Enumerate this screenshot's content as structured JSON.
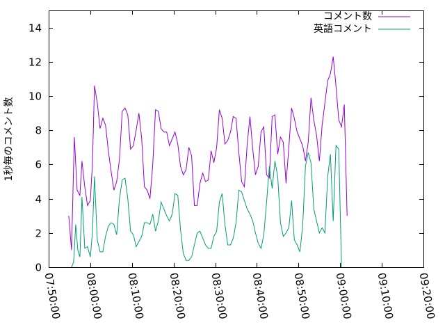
{
  "chart_data": {
    "type": "line",
    "title": "",
    "xlabel": "",
    "ylabel": "1秒毎のコメント数",
    "xlim": [
      "07:50:00",
      "09:20:00"
    ],
    "ylim": [
      0,
      15
    ],
    "grid": false,
    "legend_position": "top-right",
    "x_ticks": [
      "07:50:00",
      "08:00:00",
      "08:10:00",
      "08:20:00",
      "08:30:00",
      "08:40:00",
      "08:50:00",
      "09:00:00",
      "09:10:00",
      "09:20:00"
    ],
    "y_ticks": [
      0,
      2,
      4,
      6,
      8,
      10,
      12,
      14
    ],
    "series": [
      {
        "name": "コメント数",
        "color": "#9400d3",
        "points": [
          [
            "07:54:50",
            3.0
          ],
          [
            "07:55:30",
            1.0
          ],
          [
            "07:56:10",
            7.6
          ],
          [
            "07:56:50",
            4.5
          ],
          [
            "07:57:30",
            4.2
          ],
          [
            "07:58:00",
            6.2
          ],
          [
            "07:58:40",
            4.7
          ],
          [
            "07:59:20",
            3.6
          ],
          [
            "08:00:00",
            3.9
          ],
          [
            "08:00:30",
            6.0
          ],
          [
            "08:01:00",
            10.6
          ],
          [
            "08:01:40",
            9.6
          ],
          [
            "08:02:20",
            8.1
          ],
          [
            "08:03:00",
            8.7
          ],
          [
            "08:03:40",
            8.3
          ],
          [
            "08:04:20",
            6.8
          ],
          [
            "08:05:00",
            5.6
          ],
          [
            "08:05:40",
            4.5
          ],
          [
            "08:06:20",
            5.0
          ],
          [
            "08:07:00",
            6.3
          ],
          [
            "08:07:40",
            9.1
          ],
          [
            "08:08:20",
            9.3
          ],
          [
            "08:09:00",
            8.9
          ],
          [
            "08:09:40",
            6.9
          ],
          [
            "08:10:20",
            7.1
          ],
          [
            "08:11:00",
            8.0
          ],
          [
            "08:11:40",
            9.0
          ],
          [
            "08:12:20",
            7.5
          ],
          [
            "08:13:00",
            4.7
          ],
          [
            "08:13:40",
            4.5
          ],
          [
            "08:14:20",
            4.0
          ],
          [
            "08:15:00",
            6.0
          ],
          [
            "08:15:40",
            9.2
          ],
          [
            "08:16:20",
            9.1
          ],
          [
            "08:17:00",
            8.1
          ],
          [
            "08:17:40",
            7.9
          ],
          [
            "08:18:20",
            7.9
          ],
          [
            "08:19:00",
            7.1
          ],
          [
            "08:19:40",
            7.5
          ],
          [
            "08:20:20",
            7.9
          ],
          [
            "08:21:00",
            7.2
          ],
          [
            "08:21:40",
            5.9
          ],
          [
            "08:22:20",
            5.4
          ],
          [
            "08:23:00",
            5.7
          ],
          [
            "08:23:40",
            7.0
          ],
          [
            "08:24:20",
            6.5
          ],
          [
            "08:25:00",
            3.6
          ],
          [
            "08:25:40",
            3.6
          ],
          [
            "08:26:20",
            4.9
          ],
          [
            "08:27:00",
            5.5
          ],
          [
            "08:27:40",
            5.0
          ],
          [
            "08:28:20",
            5.1
          ],
          [
            "08:29:00",
            6.8
          ],
          [
            "08:29:40",
            6.1
          ],
          [
            "08:30:20",
            7.0
          ],
          [
            "08:31:00",
            9.2
          ],
          [
            "08:31:40",
            8.7
          ],
          [
            "08:32:20",
            7.2
          ],
          [
            "08:33:00",
            7.4
          ],
          [
            "08:33:40",
            7.9
          ],
          [
            "08:34:20",
            8.8
          ],
          [
            "08:35:00",
            8.7
          ],
          [
            "08:35:40",
            6.7
          ],
          [
            "08:36:20",
            5.0
          ],
          [
            "08:37:00",
            4.7
          ],
          [
            "08:37:40",
            7.2
          ],
          [
            "08:38:20",
            8.8
          ],
          [
            "08:39:00",
            6.9
          ],
          [
            "08:39:40",
            5.4
          ],
          [
            "08:40:20",
            5.9
          ],
          [
            "08:41:00",
            7.9
          ],
          [
            "08:41:40",
            8.2
          ],
          [
            "08:42:20",
            5.4
          ],
          [
            "08:43:00",
            5.2
          ],
          [
            "08:43:40",
            8.8
          ],
          [
            "08:44:20",
            8.9
          ],
          [
            "08:45:00",
            6.6
          ],
          [
            "08:45:40",
            7.6
          ],
          [
            "08:46:20",
            7.3
          ],
          [
            "08:47:00",
            4.9
          ],
          [
            "08:47:40",
            7.0
          ],
          [
            "08:48:20",
            9.3
          ],
          [
            "08:49:00",
            8.7
          ],
          [
            "08:49:40",
            7.9
          ],
          [
            "08:50:20",
            7.5
          ],
          [
            "08:51:00",
            7.1
          ],
          [
            "08:51:40",
            6.2
          ],
          [
            "08:52:20",
            7.3
          ],
          [
            "08:53:00",
            9.9
          ],
          [
            "08:53:40",
            8.6
          ],
          [
            "08:54:20",
            7.7
          ],
          [
            "08:55:00",
            6.2
          ],
          [
            "08:55:40",
            8.3
          ],
          [
            "08:56:20",
            9.6
          ],
          [
            "08:57:00",
            10.9
          ],
          [
            "08:57:40",
            11.3
          ],
          [
            "08:58:20",
            12.3
          ],
          [
            "08:59:00",
            10.6
          ],
          [
            "08:59:40",
            8.6
          ],
          [
            "09:00:20",
            8.2
          ],
          [
            "09:01:00",
            9.5
          ],
          [
            "09:01:40",
            3.0
          ]
        ]
      },
      {
        "name": "英語コメント",
        "color": "#009e73",
        "points": [
          [
            "07:55:30",
            0.0
          ],
          [
            "07:56:00",
            0.3
          ],
          [
            "07:56:30",
            2.5
          ],
          [
            "07:57:00",
            1.0
          ],
          [
            "07:57:30",
            0.6
          ],
          [
            "07:58:00",
            4.1
          ],
          [
            "07:58:40",
            1.1
          ],
          [
            "07:59:20",
            1.2
          ],
          [
            "08:00:00",
            0.6
          ],
          [
            "08:00:30",
            2.0
          ],
          [
            "08:01:00",
            5.3
          ],
          [
            "08:01:40",
            1.6
          ],
          [
            "08:02:20",
            0.9
          ],
          [
            "08:03:00",
            0.9
          ],
          [
            "08:03:40",
            1.8
          ],
          [
            "08:04:20",
            2.4
          ],
          [
            "08:05:00",
            2.6
          ],
          [
            "08:05:40",
            2.5
          ],
          [
            "08:06:20",
            1.9
          ],
          [
            "08:07:00",
            4.0
          ],
          [
            "08:07:40",
            5.1
          ],
          [
            "08:08:20",
            5.2
          ],
          [
            "08:09:00",
            4.0
          ],
          [
            "08:09:40",
            2.1
          ],
          [
            "08:10:20",
            1.9
          ],
          [
            "08:11:00",
            1.2
          ],
          [
            "08:11:40",
            1.5
          ],
          [
            "08:12:20",
            1.8
          ],
          [
            "08:13:00",
            2.6
          ],
          [
            "08:13:40",
            2.6
          ],
          [
            "08:14:20",
            2.5
          ],
          [
            "08:15:00",
            3.1
          ],
          [
            "08:15:40",
            2.1
          ],
          [
            "08:16:20",
            2.7
          ],
          [
            "08:17:00",
            3.8
          ],
          [
            "08:17:40",
            3.4
          ],
          [
            "08:18:20",
            3.0
          ],
          [
            "08:19:00",
            2.7
          ],
          [
            "08:19:40",
            3.1
          ],
          [
            "08:20:20",
            4.3
          ],
          [
            "08:21:00",
            4.2
          ],
          [
            "08:21:40",
            2.2
          ],
          [
            "08:22:20",
            0.8
          ],
          [
            "08:23:00",
            0.4
          ],
          [
            "08:23:40",
            0.4
          ],
          [
            "08:24:20",
            0.6
          ],
          [
            "08:25:00",
            1.3
          ],
          [
            "08:25:40",
            2.0
          ],
          [
            "08:26:20",
            2.1
          ],
          [
            "08:27:00",
            1.7
          ],
          [
            "08:27:40",
            1.3
          ],
          [
            "08:28:20",
            1.1
          ],
          [
            "08:29:00",
            1.1
          ],
          [
            "08:29:40",
            1.8
          ],
          [
            "08:30:20",
            2.1
          ],
          [
            "08:31:00",
            3.8
          ],
          [
            "08:31:40",
            4.3
          ],
          [
            "08:32:20",
            2.5
          ],
          [
            "08:33:00",
            1.3
          ],
          [
            "08:33:40",
            1.3
          ],
          [
            "08:34:20",
            1.7
          ],
          [
            "08:35:00",
            2.6
          ],
          [
            "08:35:40",
            4.5
          ],
          [
            "08:36:20",
            4.4
          ],
          [
            "08:37:00",
            3.9
          ],
          [
            "08:37:40",
            3.4
          ],
          [
            "08:38:20",
            3.1
          ],
          [
            "08:39:00",
            2.7
          ],
          [
            "08:39:40",
            2.0
          ],
          [
            "08:40:20",
            1.4
          ],
          [
            "08:41:00",
            1.1
          ],
          [
            "08:41:40",
            1.9
          ],
          [
            "08:42:20",
            3.8
          ],
          [
            "08:43:00",
            5.9
          ],
          [
            "08:43:40",
            4.6
          ],
          [
            "08:44:20",
            6.2
          ],
          [
            "08:45:00",
            5.3
          ],
          [
            "08:45:40",
            2.6
          ],
          [
            "08:46:20",
            1.8
          ],
          [
            "08:47:00",
            2.0
          ],
          [
            "08:47:40",
            2.3
          ],
          [
            "08:48:20",
            3.9
          ],
          [
            "08:49:00",
            1.6
          ],
          [
            "08:49:40",
            1.3
          ],
          [
            "08:50:20",
            0.9
          ],
          [
            "08:51:00",
            2.4
          ],
          [
            "08:51:40",
            5.9
          ],
          [
            "08:52:20",
            6.7
          ],
          [
            "08:53:00",
            6.1
          ],
          [
            "08:53:40",
            3.4
          ],
          [
            "08:54:20",
            2.7
          ],
          [
            "08:55:00",
            2.0
          ],
          [
            "08:55:40",
            2.3
          ],
          [
            "08:56:20",
            2.0
          ],
          [
            "08:57:00",
            5.3
          ],
          [
            "08:57:40",
            6.6
          ],
          [
            "08:58:20",
            2.7
          ],
          [
            "08:59:00",
            7.1
          ],
          [
            "08:59:40",
            6.9
          ],
          [
            "09:00:20",
            0.0
          ]
        ]
      }
    ]
  }
}
